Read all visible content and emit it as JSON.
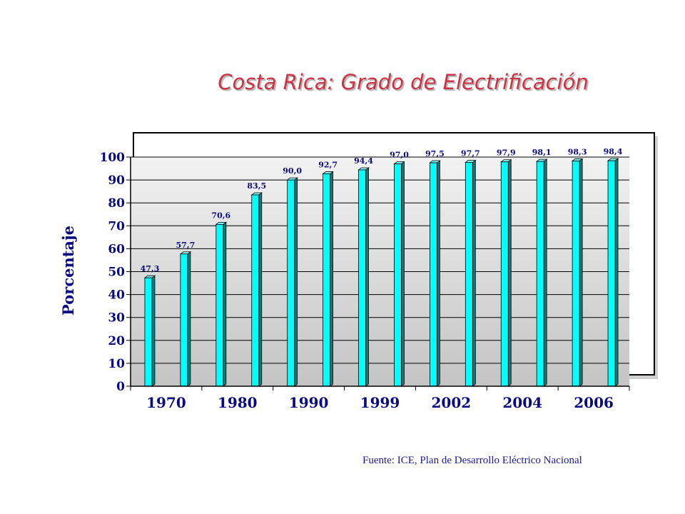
{
  "chart_data": {
    "type": "bar",
    "title": "Costa Rica:  Grado de Electrificación",
    "ylabel": "Porcentaje",
    "xlabel": "",
    "ylim": [
      0,
      100
    ],
    "yticks": [
      0,
      10,
      20,
      30,
      40,
      50,
      60,
      70,
      80,
      90,
      100
    ],
    "grid": true,
    "legend": "none",
    "bars": [
      47.3,
      57.7,
      70.6,
      83.5,
      90.0,
      92.7,
      94.4,
      97.0,
      97.5,
      97.7,
      97.9,
      98.1,
      98.3,
      98.4
    ],
    "data_labels": [
      "47,3",
      "57,7",
      "70,6",
      "83,5",
      "90,0",
      "92,7",
      "94,4",
      "97,0",
      "97,5",
      "97,7",
      "97,9",
      "98,1",
      "98,3",
      "98,4"
    ],
    "x_tick_labels": [
      "1970",
      "1980",
      "1990",
      "1999",
      "2002",
      "2004",
      "2006"
    ],
    "bar_color": "#00ffff",
    "plot_background": "#d9d9d9"
  },
  "footer": {
    "source": "Fuente:  ICE, Plan de Desarrollo Eléctrico Nacional"
  }
}
